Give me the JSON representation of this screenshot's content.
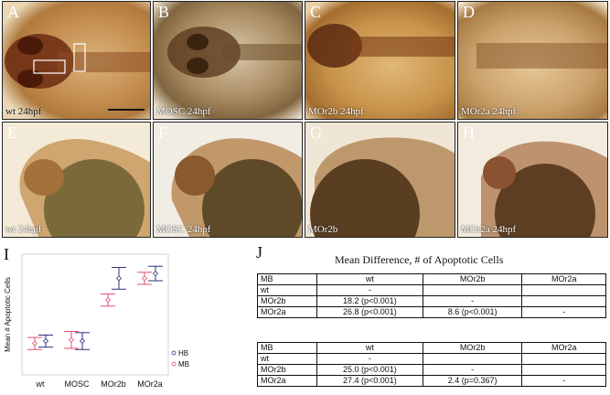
{
  "panels_top": [
    {
      "letter": "A",
      "caption": "wt 24hpf"
    },
    {
      "letter": "B",
      "caption": "MOSC 24hpf"
    },
    {
      "letter": "C",
      "caption": "MOr2b 24hpf"
    },
    {
      "letter": "D",
      "caption": "MOr2a 24hpf"
    }
  ],
  "panels_mid": [
    {
      "letter": "E",
      "caption": "wt 24hpf"
    },
    {
      "letter": "F",
      "caption": "MOSC 24hpf"
    },
    {
      "letter": "G",
      "caption": "MOr2b"
    },
    {
      "letter": "H",
      "caption": "MOr2a 24hpf"
    }
  ],
  "panel_i": {
    "letter": "I"
  },
  "panel_j": {
    "letter": "J",
    "title": "Mean Difference, # of Apoptotic Cells"
  },
  "chart_data": {
    "type": "scatter",
    "categories": [
      "wt",
      "MOSC",
      "MOr2b",
      "MOr2a"
    ],
    "ylabel": "Mean # Apoptotic Cells",
    "ylim": [
      0,
      50
    ],
    "series": [
      {
        "name": "HB",
        "color": "#2b2f7a",
        "values": [
          14,
          14,
          40,
          42
        ],
        "err": [
          2.5,
          3.5,
          4.5,
          3
        ]
      },
      {
        "name": "MB",
        "color": "#e0506a",
        "values": [
          13,
          14.5,
          31,
          40
        ],
        "err": [
          2.5,
          3.5,
          2.5,
          2.5
        ]
      }
    ]
  },
  "table_mb": {
    "headers": [
      "MB",
      "wt",
      "MOr2b",
      "MOr2a"
    ],
    "rows": [
      [
        "wt",
        "-",
        "",
        ""
      ],
      [
        "MOr2b",
        "18.2 (p<0.001)",
        "-",
        ""
      ],
      [
        "MOr2a",
        "26.8 (p<0.001)",
        "8.6 (p<0.001)",
        "-"
      ]
    ]
  },
  "table_hb": {
    "headers": [
      "MB",
      "wt",
      "MOr2b",
      "MOr2a"
    ],
    "rows": [
      [
        "wt",
        "-",
        "",
        ""
      ],
      [
        "MOr2b",
        "25.0 (p<0.001)",
        "-",
        ""
      ],
      [
        "MOr2a",
        "27.4 (p<0.001)",
        "2.4 (p=0.367)",
        "-"
      ]
    ]
  }
}
